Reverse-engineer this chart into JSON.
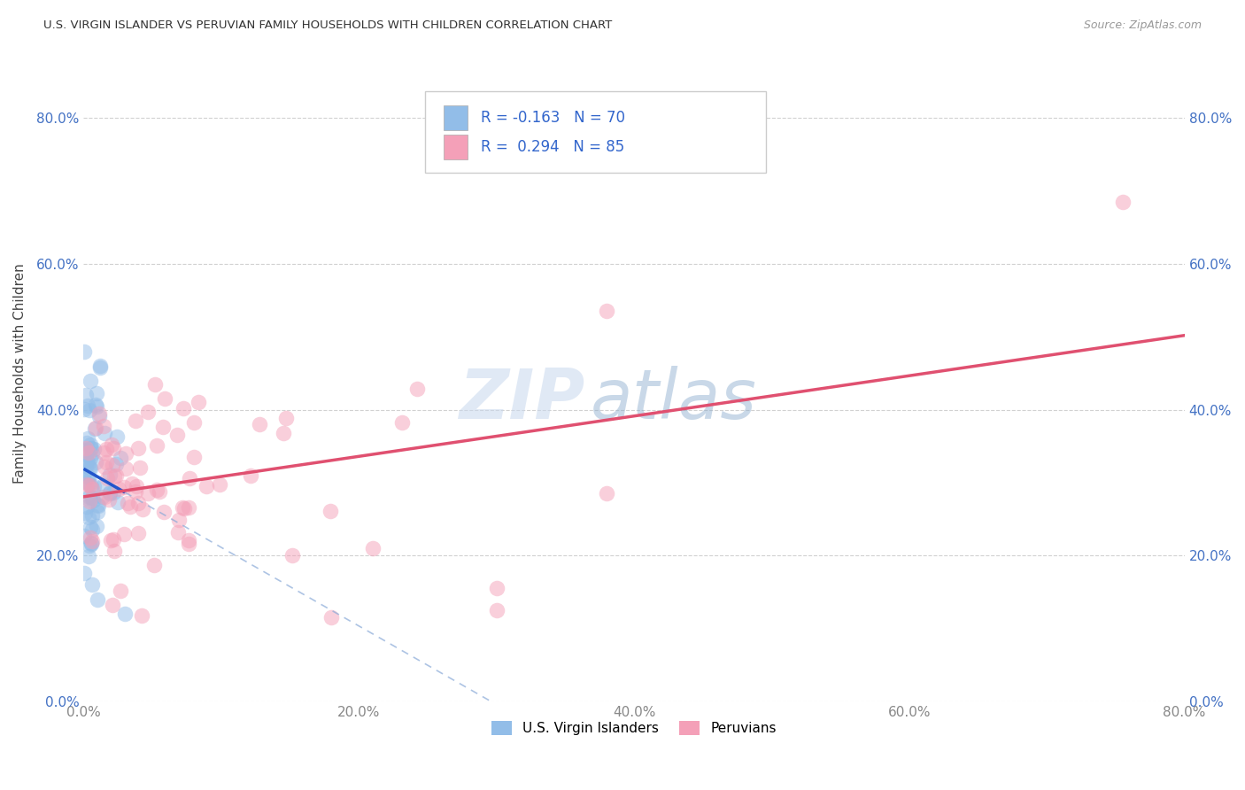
{
  "title": "U.S. VIRGIN ISLANDER VS PERUVIAN FAMILY HOUSEHOLDS WITH CHILDREN CORRELATION CHART",
  "source": "Source: ZipAtlas.com",
  "ylabel": "Family Households with Children",
  "legend_label_1": "U.S. Virgin Islanders",
  "legend_label_2": "Peruvians",
  "R1": -0.163,
  "N1": 70,
  "R2": 0.294,
  "N2": 85,
  "color1": "#92BDE8",
  "color2": "#F4A0B8",
  "trendline1_solid_color": "#2255CC",
  "trendline1_dash_color": "#8AAAD8",
  "trendline2_color": "#E05070",
  "watermark_zip": "ZIP",
  "watermark_atlas": "atlas",
  "background_color": "#FFFFFF",
  "xlim": [
    0.0,
    0.8
  ],
  "ylim": [
    0.0,
    0.9
  ],
  "x_ticks": [
    0.0,
    0.2,
    0.4,
    0.6,
    0.8
  ],
  "y_ticks": [
    0.0,
    0.2,
    0.4,
    0.6,
    0.8
  ],
  "grid_color": "#CCCCCC",
  "left_ytick_color": "#4472C4",
  "right_ytick_color": "#4472C4",
  "xtick_color": "#888888"
}
